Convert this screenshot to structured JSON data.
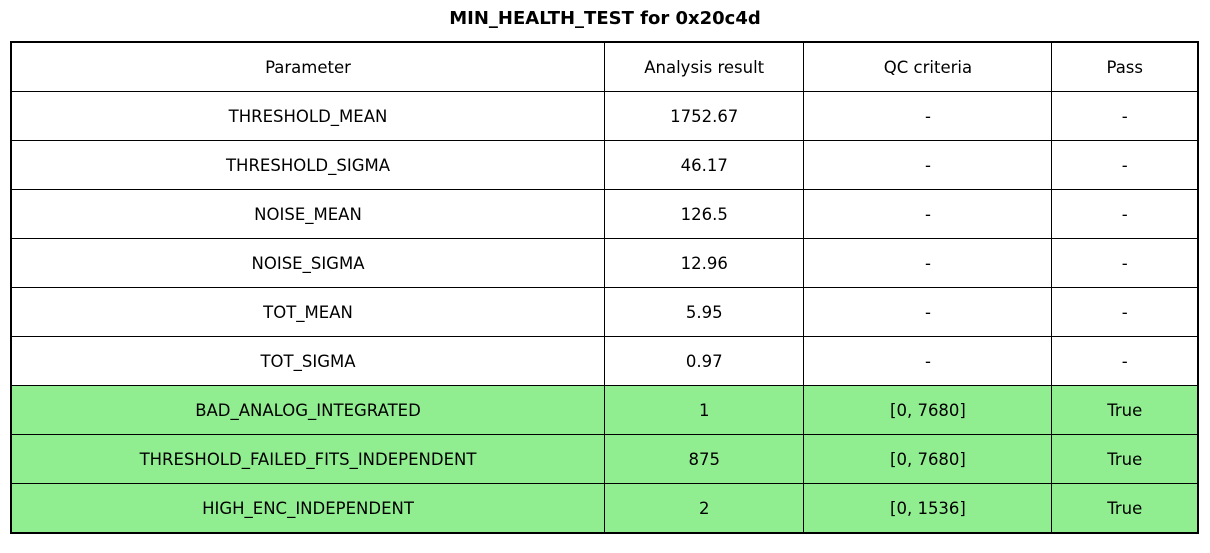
{
  "title": "MIN_HEALTH_TEST for 0x20c4d",
  "colors": {
    "highlight_green": "#90ee90",
    "border": "#000000",
    "background": "#ffffff",
    "text": "#000000"
  },
  "chart_data": {
    "type": "table",
    "title": "MIN_HEALTH_TEST for 0x20c4d",
    "columns": [
      "Parameter",
      "Analysis result",
      "QC criteria",
      "Pass"
    ],
    "rows": [
      {
        "cells": [
          "THRESHOLD_MEAN",
          "1752.67",
          "-",
          "-"
        ],
        "highlighted": false
      },
      {
        "cells": [
          "THRESHOLD_SIGMA",
          "46.17",
          "-",
          "-"
        ],
        "highlighted": false
      },
      {
        "cells": [
          "NOISE_MEAN",
          "126.5",
          "-",
          "-"
        ],
        "highlighted": false
      },
      {
        "cells": [
          "NOISE_SIGMA",
          "12.96",
          "-",
          "-"
        ],
        "highlighted": false
      },
      {
        "cells": [
          "TOT_MEAN",
          "5.95",
          "-",
          "-"
        ],
        "highlighted": false
      },
      {
        "cells": [
          "TOT_SIGMA",
          "0.97",
          "-",
          "-"
        ],
        "highlighted": false
      },
      {
        "cells": [
          "BAD_ANALOG_INTEGRATED",
          "1",
          "[0, 7680]",
          "True"
        ],
        "highlighted": true
      },
      {
        "cells": [
          "THRESHOLD_FAILED_FITS_INDEPENDENT",
          "875",
          "[0, 7680]",
          "True"
        ],
        "highlighted": true
      },
      {
        "cells": [
          "HIGH_ENC_INDEPENDENT",
          "2",
          "[0, 1536]",
          "True"
        ],
        "highlighted": true
      }
    ]
  }
}
